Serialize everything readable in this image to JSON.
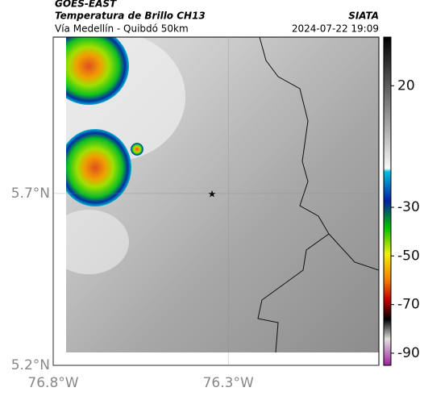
{
  "header": {
    "title": "GOES-EAST",
    "subtitle": "Temperatura de Brillo CH13",
    "source": "SIATA",
    "route": "Vía Medellín - Quibdó 50km",
    "timestamp": "2024-07-22 19:09"
  },
  "map": {
    "xlim": [
      -76.8,
      -75.87
    ],
    "ylim": [
      5.2,
      6.155
    ],
    "xticks": [
      {
        "value": -76.8,
        "label": "76.8°W"
      },
      {
        "value": -76.3,
        "label": "76.3°W"
      }
    ],
    "yticks": [
      {
        "value": 5.7,
        "label": "5.7°N"
      },
      {
        "value": 5.2,
        "label": "5.2°N"
      }
    ]
  },
  "colorbar": {
    "lim": [
      40,
      -95
    ],
    "ticks": [
      20,
      -30,
      -50,
      -70,
      -90
    ]
  }
}
